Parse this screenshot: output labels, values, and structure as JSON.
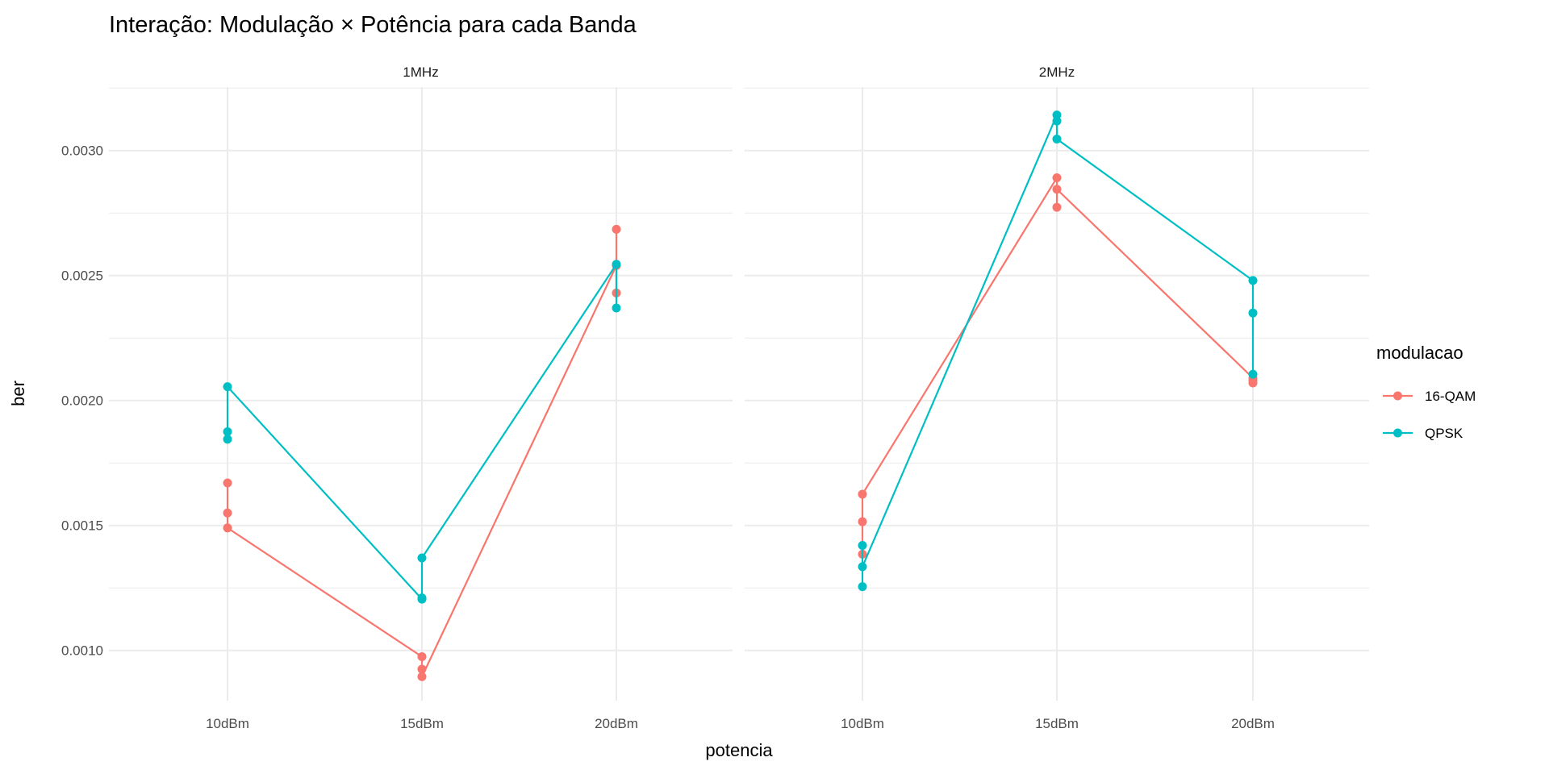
{
  "chart_data": {
    "type": "line",
    "title": "Interação: Modulação × Potência para cada Banda",
    "xlabel": "potencia",
    "ylabel": "ber",
    "categories": [
      "10dBm",
      "15dBm",
      "20dBm"
    ],
    "ylim": [
      0.0008,
      0.00325
    ],
    "yticks": [
      0.001,
      0.0015,
      0.002,
      0.0025,
      0.003
    ],
    "ytick_labels": [
      "0.0010",
      "0.0015",
      "0.0020",
      "0.0025",
      "0.0030"
    ],
    "grid": true,
    "legend": {
      "title": "modulacao",
      "position": "right"
    },
    "colors": {
      "16-QAM": "#F8766D",
      "QPSK": "#00BFC4"
    },
    "panels": [
      {
        "label": "1MHz",
        "series": [
          {
            "name": "16-QAM",
            "points": [
              [
                "10dBm",
                0.00167
              ],
              [
                "10dBm",
                0.00155
              ],
              [
                "10dBm",
                0.00149
              ],
              [
                "15dBm",
                0.000975
              ],
              [
                "15dBm",
                0.000925
              ],
              [
                "15dBm",
                0.000895
              ],
              [
                "20dBm",
                0.00254
              ],
              [
                "20dBm",
                0.002685
              ],
              [
                "20dBm",
                0.00243
              ]
            ]
          },
          {
            "name": "QPSK",
            "points": [
              [
                "10dBm",
                0.001845
              ],
              [
                "10dBm",
                0.001875
              ],
              [
                "10dBm",
                0.002055
              ],
              [
                "15dBm",
                0.001205
              ],
              [
                "15dBm",
                0.00121
              ],
              [
                "15dBm",
                0.00137
              ],
              [
                "20dBm",
                0.002545
              ],
              [
                "20dBm",
                0.00237
              ]
            ]
          }
        ]
      },
      {
        "label": "2MHz",
        "series": [
          {
            "name": "16-QAM",
            "points": [
              [
                "10dBm",
                0.001385
              ],
              [
                "10dBm",
                0.001515
              ],
              [
                "10dBm",
                0.001625
              ],
              [
                "15dBm",
                0.002891
              ],
              [
                "15dBm",
                0.002773
              ],
              [
                "15dBm",
                0.002845
              ],
              [
                "20dBm",
                0.00209
              ],
              [
                "20dBm",
                0.00208
              ],
              [
                "20dBm",
                0.00207
              ]
            ]
          },
          {
            "name": "QPSK",
            "points": [
              [
                "10dBm",
                0.00142
              ],
              [
                "10dBm",
                0.001255
              ],
              [
                "10dBm",
                0.001335
              ],
              [
                "15dBm",
                0.003142
              ],
              [
                "15dBm",
                0.003118
              ],
              [
                "15dBm",
                0.003046
              ],
              [
                "20dBm",
                0.00248
              ],
              [
                "20dBm",
                0.00235
              ],
              [
                "20dBm",
                0.002105
              ]
            ]
          }
        ]
      }
    ]
  }
}
